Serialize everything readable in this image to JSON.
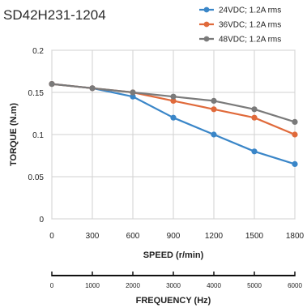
{
  "chart_data": {
    "type": "line",
    "title": "SD42H231-1204",
    "xlabel": "SPEED (r/min)",
    "ylabel": "TORQUE (N.m)",
    "x": [
      0,
      300,
      600,
      900,
      1200,
      1500,
      1800
    ],
    "x_tick_labels": [
      "0",
      "300",
      "600",
      "900",
      "1200",
      "1500",
      "1800"
    ],
    "xlim": [
      0,
      1800
    ],
    "y_tick_labels": [
      "0",
      "0.05",
      "0.1",
      "0.15",
      "0.2"
    ],
    "ylim": [
      0,
      0.2
    ],
    "grid": true,
    "legend_position": "top-right",
    "series": [
      {
        "name": "24VDC; 1.2A rms",
        "color": "#3a86c8",
        "values": [
          0.16,
          0.155,
          0.145,
          0.12,
          0.1,
          0.08,
          0.065
        ]
      },
      {
        "name": "36VDC; 1.2A rms",
        "color": "#e06a3b",
        "values": [
          0.16,
          0.155,
          0.15,
          0.14,
          0.13,
          0.12,
          0.1
        ]
      },
      {
        "name": "48VDC; 1.2A rms",
        "color": "#7a7a7a",
        "values": [
          0.16,
          0.155,
          0.15,
          0.145,
          0.14,
          0.13,
          0.115
        ]
      }
    ],
    "secondary_axis": {
      "label": "FREQUENCY (Hz)",
      "ticks": [
        0,
        1000,
        2000,
        3000,
        4000,
        5000,
        6000
      ],
      "tick_labels": [
        "0",
        "1000",
        "2000",
        "3000",
        "4000",
        "5000",
        "6000"
      ]
    }
  }
}
